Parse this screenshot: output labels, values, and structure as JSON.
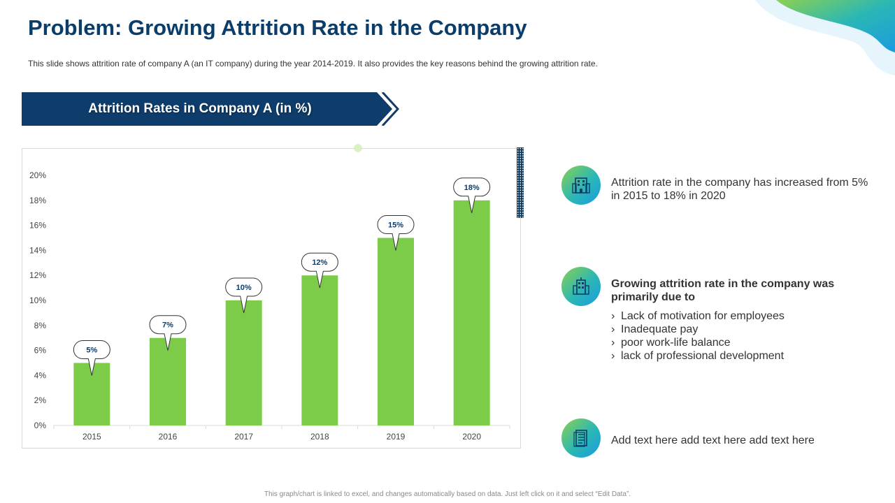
{
  "page": {
    "title": "Problem: Growing Attrition Rate in the Company",
    "subtitle": "This slide shows attrition rate of company A (an IT company) during the year 2014-2019. It also provides  the key reasons behind the growing attrition rate.",
    "footnote": "This graph/chart is linked to excel, and changes automatically based on data. Just left click on it and select “Edit Data”."
  },
  "banner": {
    "label": "Attrition Rates in Company  A (in %)"
  },
  "colors": {
    "bar": "#7ccc4a",
    "navy": "#0b3d6b",
    "banner": "#0e3d6c"
  },
  "info": [
    {
      "icon": "building-icon",
      "text": "Attrition rate in the company has increased from 5% in 2015 to 18% in 2020"
    },
    {
      "icon": "office-building-icon",
      "heading": "Growing attrition rate in the company was primarily due to",
      "chevron": "›",
      "reasons": [
        "Lack of motivation for employees",
        "Inadequate pay",
        "poor work-life balance",
        "lack of professional development"
      ]
    },
    {
      "icon": "document-icon",
      "text": "Add text here add text  here add text here"
    }
  ],
  "chart_data": {
    "type": "bar",
    "categories": [
      "2015",
      "2016",
      "2017",
      "2018",
      "2019",
      "2020"
    ],
    "values": [
      5,
      7,
      10,
      12,
      15,
      18
    ],
    "data_labels": [
      "5%",
      "7%",
      "10%",
      "12%",
      "15%",
      "18%"
    ],
    "yticks": [
      "0%",
      "2%",
      "4%",
      "6%",
      "8%",
      "10%",
      "12%",
      "14%",
      "16%",
      "18%",
      "20%"
    ],
    "ylim": [
      0,
      20
    ],
    "grid": false,
    "legend": "none"
  }
}
